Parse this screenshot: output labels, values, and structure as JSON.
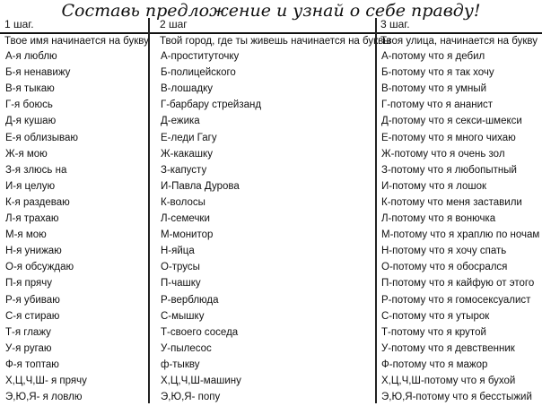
{
  "title": "Составь предложение и узнай о себе правду!",
  "columns": [
    {
      "step": "1 шаг.",
      "subtitle": "Твое имя начинается на букву",
      "items": [
        "А-я люблю",
        "Б-я ненавижу",
        "В-я тыкаю",
        "Г-я боюсь",
        "Д-я кушаю",
        "Е-я облизываю",
        "Ж-я мою",
        "З-я злюсь на",
        "И-я целую",
        "К-я раздеваю",
        "Л-я трахаю",
        "М-я мою",
        "Н-я унижаю",
        "О-я обсуждаю",
        "П-я прячу",
        "Р-я убиваю",
        "С-я стираю",
        "Т-я глажу",
        "У-я ругаю",
        "Ф-я топтаю",
        "Х,Ц,Ч,Ш- я прячу",
        "Э,Ю,Я- я ловлю"
      ]
    },
    {
      "step": "2 шаг",
      "subtitle": "Твой город, где ты живешь начинается на буквы",
      "items": [
        "А-проституточку",
        "Б-полицейского",
        "В-лошадку",
        "Г-барбару стрейзанд",
        "Д-ежика",
        "Е-леди Гагу",
        "Ж-какашку",
        "З-капусту",
        "И-Павла Дурова",
        "К-волосы",
        "Л-семечки",
        "М-монитор",
        "Н-яйца",
        "О-трусы",
        "П-чашку",
        "Р-верблюда",
        "С-мышку",
        "Т-своего соседа",
        "У-пылесос",
        "ф-тыкву",
        "Х,Ц,Ч,Ш-машину",
        "Э,Ю,Я- попу"
      ]
    },
    {
      "step": "3 шаг.",
      "subtitle": "Твоя улица,  начинается  на букву",
      "items": [
        "А-потому что я дебил",
        "Б-потому что я так хочу",
        "В-потому что я умный",
        "Г-потому что я ананист",
        "Д-потому что я секси-шмекси",
        "Е-потому что я много чихаю",
        "Ж-потому что я очень зол",
        "З-потому что я любопытный",
        "И-потому что я лошок",
        "К-потому что меня заставили",
        "Л-потому что я вонючка",
        "М-потому что я храплю по ночам",
        "Н-потому что я хочу спать",
        "О-потому что я обосрался",
        "П-потому что я кайфую от этого",
        "Р-потому что я гомосексуалист",
        "С-потому что я утырок",
        "Т-потому что я крутой",
        "У-потому что я девственник",
        "Ф-потому что я мажор",
        "Х,Ц,Ч,Ш-потому что я бухой",
        "Э,Ю,Я-потому что я бесстыжий"
      ]
    }
  ]
}
